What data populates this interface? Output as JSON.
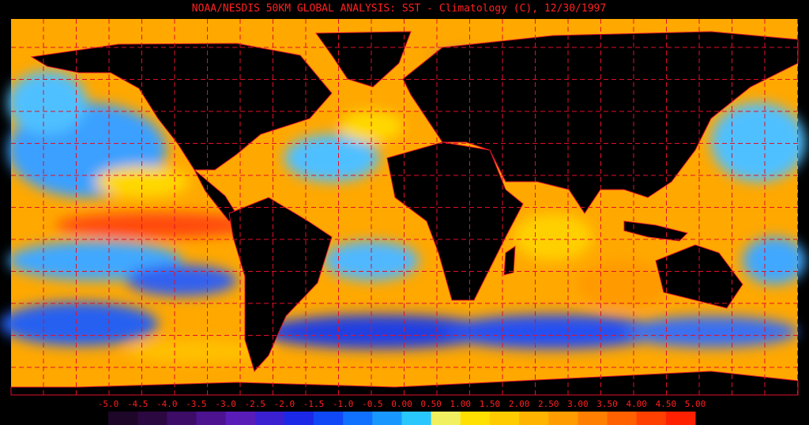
{
  "title": "NOAA/NESDIS 50KM GLOBAL ANALYSIS: SST - Climatology (C), 12/30/1997",
  "colorbar": {
    "labels": [
      "-5.0",
      "-4.5",
      "-4.0",
      "-3.5",
      "-3.0",
      "-2.5",
      "-2.0",
      "-1.5",
      "-1.0",
      "-0.5",
      "0.00",
      "0.50",
      "1.00",
      "1.50",
      "2.00",
      "2.50",
      "3.00",
      "3.50",
      "4.00",
      "4.50",
      "5.00"
    ],
    "colors": [
      "#1e0628",
      "#2c0840",
      "#3c0c66",
      "#4c1290",
      "#5a1cb8",
      "#3a20d0",
      "#1c28e8",
      "#1048f8",
      "#1070ff",
      "#1898ff",
      "#28c8ff",
      "#f0f060",
      "#ffe000",
      "#ffcc00",
      "#ffb400",
      "#ff9c00",
      "#ff8000",
      "#ff6000",
      "#ff4000",
      "#ff2000"
    ]
  }
}
